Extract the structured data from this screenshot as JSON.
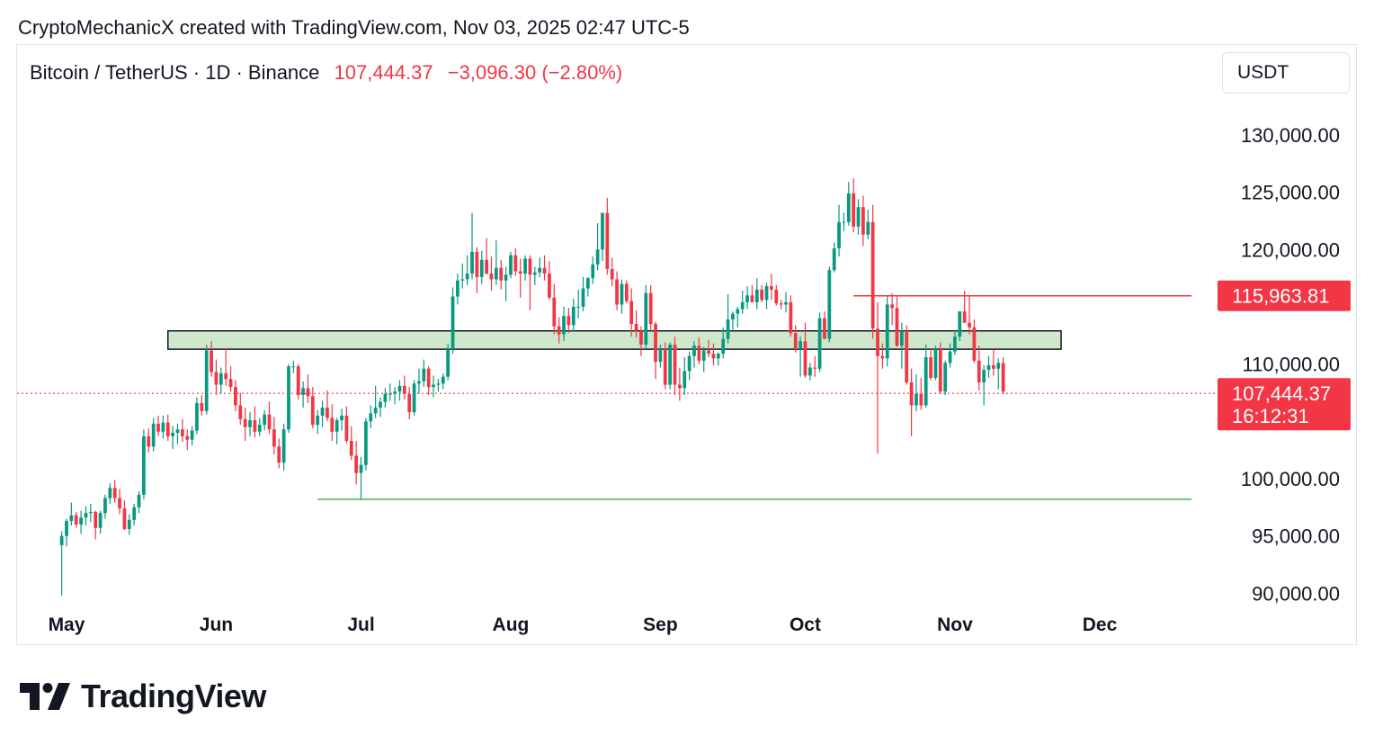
{
  "attribution": "CryptoMechanicX created with TradingView.com, Nov 03, 2025 02:47 UTC-5",
  "header": {
    "symbol": "Bitcoin / TetherUS · 1D · Binance",
    "price": "107,444.37",
    "change": "−3,096.30 (−2.80%)",
    "currency": "USDT"
  },
  "brand": {
    "name": "TradingView",
    "icon": "tradingview-logo-icon"
  },
  "colors": {
    "up": "#089981",
    "down": "#f23645",
    "zone": "#cfe8cc",
    "support": "#4caf50",
    "resistance": "#f23645"
  },
  "chart_data": {
    "type": "candlestick",
    "y_axis": {
      "ticks": [
        "130,000.00",
        "125,000.00",
        "120,000.00",
        "110,000.00",
        "100,000.00",
        "95,000.00",
        "90,000.00"
      ],
      "ylim": [
        89000,
        133000
      ]
    },
    "x_axis": {
      "ticks": [
        "May",
        "Jun",
        "Jul",
        "Aug",
        "Sep",
        "Oct",
        "Nov",
        "Dec"
      ]
    },
    "price_labels": [
      {
        "value": "115,963.81",
        "price": 115963.81,
        "color": "#f23645"
      },
      {
        "value": "107,444.37",
        "sub": "16:12:31",
        "price": 107444.37,
        "color": "#f23645"
      }
    ],
    "annotations": {
      "zone": {
        "low": 111300,
        "high": 112900,
        "from": "2025-05-22",
        "to": "2025-11-23"
      },
      "support_line": {
        "price": 98200,
        "from": "2025-06-22",
        "to": "2025-12-20"
      },
      "resistance_line": {
        "price": 115963.81,
        "from": "2025-10-11",
        "to": "2025-12-20"
      },
      "last_price_line": {
        "price": 107444.37
      }
    },
    "start_date": "2025-04-30",
    "ohlc": [
      [
        94200,
        95400,
        89800,
        95000
      ],
      [
        95000,
        96500,
        94100,
        96300
      ],
      [
        96300,
        97900,
        95900,
        96800
      ],
      [
        96800,
        97100,
        95700,
        96000
      ],
      [
        96000,
        97200,
        95200,
        96600
      ],
      [
        96600,
        97600,
        95900,
        97000
      ],
      [
        97000,
        97800,
        96200,
        97100
      ],
      [
        97100,
        97200,
        94700,
        95700
      ],
      [
        95700,
        97200,
        95200,
        97000
      ],
      [
        97000,
        98600,
        96500,
        98300
      ],
      [
        98300,
        99600,
        97800,
        99200
      ],
      [
        99200,
        99900,
        97900,
        98300
      ],
      [
        98300,
        99100,
        96900,
        97400
      ],
      [
        97400,
        98100,
        95500,
        95600
      ],
      [
        95600,
        96900,
        95100,
        96400
      ],
      [
        96400,
        97800,
        95900,
        97500
      ],
      [
        97500,
        98900,
        97000,
        98600
      ],
      [
        98600,
        104300,
        98200,
        103700
      ],
      [
        103700,
        104400,
        102300,
        102800
      ],
      [
        102800,
        105300,
        102400,
        104800
      ],
      [
        104800,
        105500,
        103700,
        104100
      ],
      [
        104100,
        105500,
        103500,
        104900
      ],
      [
        104900,
        105600,
        103300,
        103700
      ],
      [
        103700,
        104600,
        102600,
        104000
      ],
      [
        104000,
        104800,
        103000,
        104300
      ],
      [
        104300,
        105200,
        103200,
        103700
      ],
      [
        103700,
        104300,
        102500,
        103400
      ],
      [
        103400,
        104600,
        102900,
        104200
      ],
      [
        104200,
        107100,
        103900,
        106600
      ],
      [
        106600,
        107300,
        105500,
        105900
      ],
      [
        105900,
        111700,
        105600,
        111200
      ],
      [
        111200,
        112000,
        108900,
        109300
      ],
      [
        109300,
        110400,
        107300,
        108200
      ],
      [
        108200,
        109700,
        107400,
        109200
      ],
      [
        109200,
        111400,
        108100,
        108700
      ],
      [
        108700,
        109800,
        107600,
        108000
      ],
      [
        108000,
        108600,
        105900,
        106400
      ],
      [
        106400,
        107500,
        104700,
        105200
      ],
      [
        105200,
        106200,
        103300,
        104500
      ],
      [
        104500,
        105800,
        103700,
        105100
      ],
      [
        105100,
        106300,
        103600,
        104100
      ],
      [
        104100,
        105300,
        103700,
        104700
      ],
      [
        104700,
        106000,
        104200,
        105600
      ],
      [
        105600,
        106700,
        103900,
        104300
      ],
      [
        104300,
        105400,
        102100,
        102800
      ],
      [
        102800,
        103500,
        100900,
        101400
      ],
      [
        101400,
        104800,
        100700,
        104300
      ],
      [
        104300,
        110000,
        104000,
        109800
      ],
      [
        109800,
        110300,
        109200,
        109800
      ],
      [
        109800,
        110000,
        106900,
        107300
      ],
      [
        107300,
        108500,
        106200,
        107900
      ],
      [
        107900,
        109100,
        106600,
        107200
      ],
      [
        107200,
        108000,
        104400,
        104700
      ],
      [
        104700,
        106000,
        103900,
        105500
      ],
      [
        105500,
        106800,
        104500,
        106200
      ],
      [
        106200,
        107700,
        105000,
        105300
      ],
      [
        105300,
        106500,
        103300,
        104100
      ],
      [
        104100,
        105300,
        103000,
        105100
      ],
      [
        105100,
        106100,
        104200,
        105500
      ],
      [
        105500,
        106300,
        103100,
        103300
      ],
      [
        103300,
        104600,
        101600,
        102000
      ],
      [
        102000,
        103300,
        99500,
        100500
      ],
      [
        100500,
        101900,
        98200,
        101200
      ],
      [
        101200,
        105300,
        100700,
        105000
      ],
      [
        105000,
        106400,
        104400,
        105700
      ],
      [
        105700,
        108100,
        105300,
        106200
      ],
      [
        106200,
        107100,
        105400,
        106700
      ],
      [
        106700,
        107900,
        106200,
        107400
      ],
      [
        107400,
        108300,
        106800,
        107400
      ],
      [
        107400,
        108000,
        106500,
        107600
      ],
      [
        107600,
        108600,
        106800,
        108100
      ],
      [
        108100,
        109000,
        106900,
        107400
      ],
      [
        107400,
        108000,
        105200,
        105800
      ],
      [
        105800,
        108600,
        105500,
        108300
      ],
      [
        108300,
        109600,
        107400,
        108500
      ],
      [
        108500,
        110400,
        108000,
        109600
      ],
      [
        109600,
        109800,
        107300,
        108000
      ],
      [
        108000,
        109000,
        107100,
        108200
      ],
      [
        108200,
        108700,
        107600,
        108300
      ],
      [
        108300,
        109200,
        107800,
        108900
      ],
      [
        108900,
        111800,
        108600,
        111300
      ],
      [
        111300,
        116700,
        110900,
        115900
      ],
      [
        115900,
        117900,
        115200,
        117300
      ],
      [
        117300,
        118800,
        116600,
        117400
      ],
      [
        117400,
        119500,
        116900,
        117900
      ],
      [
        117900,
        123200,
        117400,
        119800
      ],
      [
        119800,
        120200,
        116200,
        117600
      ],
      [
        117600,
        119900,
        117000,
        119100
      ],
      [
        119100,
        121000,
        117800,
        117900
      ],
      [
        117900,
        119400,
        116400,
        117400
      ],
      [
        117400,
        120800,
        116900,
        118400
      ],
      [
        118400,
        119100,
        116500,
        117300
      ],
      [
        117300,
        118500,
        115500,
        117800
      ],
      [
        117800,
        119800,
        117500,
        119500
      ],
      [
        119500,
        120100,
        117700,
        118100
      ],
      [
        118100,
        119200,
        115800,
        117900
      ],
      [
        117900,
        119500,
        117300,
        119200
      ],
      [
        119200,
        119500,
        114700,
        117800
      ],
      [
        117800,
        118500,
        116900,
        118000
      ],
      [
        118000,
        119300,
        117600,
        118400
      ],
      [
        118400,
        119500,
        117300,
        117900
      ],
      [
        117900,
        119000,
        115600,
        115800
      ],
      [
        115800,
        117000,
        112600,
        113300
      ],
      [
        113300,
        114100,
        111800,
        112600
      ],
      [
        112600,
        115000,
        112000,
        114200
      ],
      [
        114200,
        114900,
        112700,
        113400
      ],
      [
        113400,
        115700,
        112800,
        115000
      ],
      [
        115000,
        116500,
        114000,
        115000
      ],
      [
        115000,
        117600,
        114600,
        116600
      ],
      [
        116600,
        117600,
        115900,
        117500
      ],
      [
        117500,
        119400,
        117000,
        118700
      ],
      [
        118700,
        122300,
        118200,
        120000
      ],
      [
        120000,
        123200,
        119000,
        123200
      ],
      [
        123200,
        124500,
        117800,
        118300
      ],
      [
        118300,
        119300,
        116800,
        117400
      ],
      [
        117400,
        118100,
        114700,
        115200
      ],
      [
        115200,
        117400,
        114400,
        117000
      ],
      [
        117000,
        117300,
        115300,
        115500
      ],
      [
        115500,
        116600,
        112400,
        113500
      ],
      [
        113500,
        114700,
        112300,
        112900
      ],
      [
        112900,
        113300,
        110700,
        111700
      ],
      [
        111700,
        116900,
        111300,
        116200
      ],
      [
        116200,
        116900,
        112900,
        113500
      ],
      [
        113500,
        113700,
        108700,
        110200
      ],
      [
        110200,
        111700,
        109700,
        111300
      ],
      [
        111300,
        111900,
        107800,
        108200
      ],
      [
        108200,
        111900,
        107800,
        111700
      ],
      [
        111700,
        112400,
        107300,
        108200
      ],
      [
        108200,
        109700,
        106800,
        107900
      ],
      [
        107900,
        110600,
        107300,
        109400
      ],
      [
        109400,
        111100,
        108600,
        110700
      ],
      [
        110700,
        112000,
        109700,
        111600
      ],
      [
        111600,
        112300,
        110000,
        110300
      ],
      [
        110300,
        111500,
        109300,
        111200
      ],
      [
        111200,
        112100,
        110600,
        110900
      ],
      [
        110900,
        111800,
        109900,
        110500
      ],
      [
        110500,
        111000,
        109900,
        110900
      ],
      [
        110900,
        113200,
        110500,
        112200
      ],
      [
        112200,
        116100,
        111800,
        113900
      ],
      [
        113900,
        114600,
        113000,
        114400
      ],
      [
        114400,
        115000,
        113200,
        114800
      ],
      [
        114800,
        116400,
        114400,
        115400
      ],
      [
        115400,
        116800,
        114800,
        116000
      ],
      [
        116000,
        116900,
        115400,
        115400
      ],
      [
        115400,
        117500,
        114800,
        116500
      ],
      [
        116500,
        116900,
        115400,
        115600
      ],
      [
        115600,
        117100,
        114800,
        116800
      ],
      [
        116800,
        117900,
        115600,
        116500
      ],
      [
        116500,
        116900,
        115100,
        115300
      ],
      [
        115300,
        115600,
        114800,
        115200
      ],
      [
        115200,
        116300,
        114500,
        115400
      ],
      [
        115400,
        116000,
        112400,
        112700
      ],
      [
        112700,
        113400,
        111000,
        111300
      ],
      [
        111300,
        112400,
        108900,
        112000
      ],
      [
        112000,
        113600,
        108800,
        109000
      ],
      [
        109000,
        110100,
        108600,
        109700
      ],
      [
        109700,
        110700,
        108900,
        109600
      ],
      [
        109600,
        114500,
        109300,
        114000
      ],
      [
        114000,
        114600,
        112200,
        112200
      ],
      [
        112200,
        118500,
        111900,
        118200
      ],
      [
        118200,
        120600,
        118000,
        120100
      ],
      [
        120100,
        123900,
        119400,
        122400
      ],
      [
        122400,
        123200,
        121600,
        122400
      ],
      [
        122400,
        125900,
        122100,
        124900
      ],
      [
        124900,
        126200,
        121500,
        122000
      ],
      [
        122000,
        124400,
        121300,
        123700
      ],
      [
        123700,
        124700,
        120300,
        121300
      ],
      [
        121300,
        123500,
        120900,
        122400
      ],
      [
        122400,
        123900,
        112200,
        113100
      ],
      [
        113100,
        115400,
        102200,
        110700
      ],
      [
        110700,
        111800,
        109600,
        110500
      ],
      [
        110500,
        116000,
        109800,
        115200
      ],
      [
        115200,
        116200,
        113400,
        114900
      ],
      [
        114900,
        115900,
        111500,
        111600
      ],
      [
        111600,
        113600,
        109600,
        112900
      ],
      [
        112900,
        113400,
        108200,
        108400
      ],
      [
        108400,
        109600,
        103700,
        106400
      ],
      [
        106400,
        109100,
        105900,
        107400
      ],
      [
        107400,
        108800,
        106000,
        106400
      ],
      [
        106400,
        111700,
        106200,
        110600
      ],
      [
        110600,
        111300,
        108600,
        108800
      ],
      [
        108800,
        111600,
        108600,
        111300
      ],
      [
        111300,
        111900,
        107400,
        107600
      ],
      [
        107600,
        110300,
        107300,
        110100
      ],
      [
        110100,
        111800,
        109700,
        111100
      ],
      [
        111100,
        112800,
        110800,
        112400
      ],
      [
        112400,
        114600,
        112000,
        114600
      ],
      [
        114600,
        116400,
        113800,
        113600
      ],
      [
        113600,
        116000,
        112600,
        113200
      ],
      [
        113200,
        113900,
        110100,
        110300
      ],
      [
        110300,
        111600,
        107700,
        108400
      ],
      [
        108400,
        109900,
        106400,
        109500
      ],
      [
        109500,
        110700,
        108800,
        109900
      ],
      [
        109900,
        111300,
        109000,
        109600
      ],
      [
        109600,
        110500,
        107800,
        110100
      ],
      [
        110100,
        110600,
        107400,
        107600
      ]
    ]
  }
}
